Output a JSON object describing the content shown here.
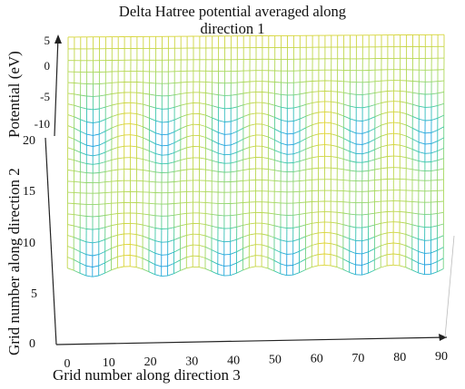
{
  "chart_data": {
    "type": "surface",
    "title_lines": [
      "Delta Hatree potential averaged along",
      "direction 1"
    ],
    "xlabel": "Grid number along direction 3",
    "ylabel": "Grid number along direction 2",
    "zlabel": "Potential (eV)",
    "x_ticks": [
      "0",
      "10",
      "20",
      "30",
      "40",
      "50",
      "60",
      "70",
      "80",
      "90"
    ],
    "y_ticks": [
      "0",
      "5",
      "10",
      "15",
      "20"
    ],
    "z_ticks": [
      "5",
      "0",
      "-5",
      "-10"
    ],
    "xlim": [
      0,
      90
    ],
    "ylim": [
      0,
      22
    ],
    "zlim": [
      -15,
      5
    ],
    "peak_x_positions": [
      6,
      23,
      38,
      53,
      70,
      86
    ],
    "peak_y_positions": [
      5,
      14
    ],
    "z_min": -12.5,
    "z_max": -6.5,
    "colormap": [
      "#1a52c9",
      "#22a6e0",
      "#3cc9a8",
      "#a8d95f",
      "#f5d21f"
    ],
    "grid": true
  }
}
